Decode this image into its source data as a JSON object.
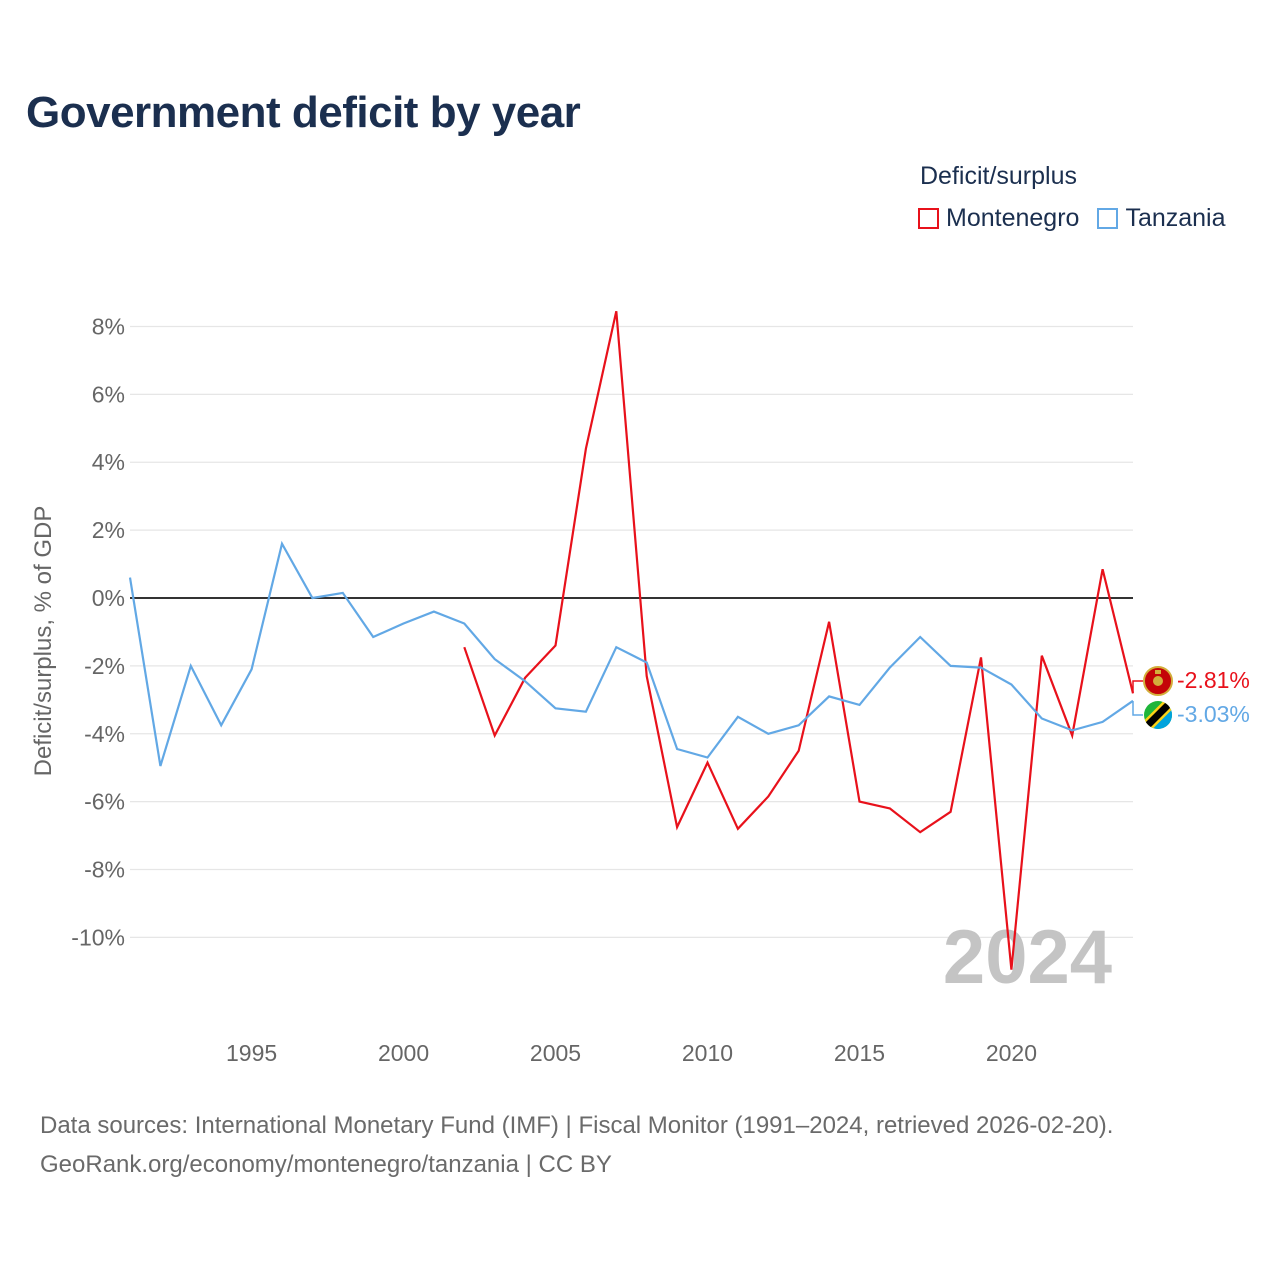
{
  "title": "Government deficit by year",
  "legend": {
    "title": "Deficit/surplus",
    "items": [
      {
        "name": "Montenegro",
        "color": "#e8111b"
      },
      {
        "name": "Tanzania",
        "color": "#62a8e5"
      }
    ]
  },
  "footer": {
    "line1": "Data sources: International Monetary Fund (IMF) | Fiscal Monitor (1991–2024, retrieved 2026-02-20).",
    "line2": "GeoRank.org/economy/montenegro/tanzania | CC BY"
  },
  "chart_data": {
    "type": "line",
    "title": "Government deficit by year",
    "xlabel": "",
    "ylabel": "Deficit/surplus, % of GDP",
    "xlim": [
      1991,
      2024
    ],
    "ylim": [
      -11,
      9
    ],
    "x_ticks": [
      1995,
      2000,
      2005,
      2010,
      2015,
      2020
    ],
    "y_ticks": [
      8,
      6,
      4,
      2,
      0,
      -2,
      -4,
      -6,
      -8,
      -10
    ],
    "y_tick_labels": [
      "8%",
      "6%",
      "4%",
      "2%",
      "0%",
      "-2%",
      "-4%",
      "-6%",
      "-8%",
      "-10%"
    ],
    "year_watermark": "2024",
    "series": [
      {
        "name": "Montenegro",
        "color": "#e8111b",
        "end_label": "-2.81%",
        "x": [
          2002,
          2003,
          2004,
          2005,
          2006,
          2007,
          2008,
          2009,
          2010,
          2011,
          2012,
          2013,
          2014,
          2015,
          2016,
          2017,
          2018,
          2019,
          2020,
          2021,
          2022,
          2023,
          2024
        ],
        "values": [
          -1.45,
          -4.05,
          -2.35,
          -1.4,
          4.4,
          8.45,
          -2.3,
          -6.75,
          -4.85,
          -6.8,
          -5.85,
          -4.5,
          -0.7,
          -6.0,
          -6.2,
          -6.9,
          -6.3,
          -1.75,
          -10.95,
          -1.7,
          -4.05,
          0.85,
          -2.81
        ]
      },
      {
        "name": "Tanzania",
        "color": "#62a8e5",
        "end_label": "-3.03%",
        "x": [
          1991,
          1992,
          1993,
          1994,
          1995,
          1996,
          1997,
          1998,
          1999,
          2000,
          2001,
          2002,
          2003,
          2004,
          2005,
          2006,
          2007,
          2008,
          2009,
          2010,
          2011,
          2012,
          2013,
          2014,
          2015,
          2016,
          2017,
          2018,
          2019,
          2020,
          2021,
          2022,
          2023,
          2024
        ],
        "values": [
          0.6,
          -4.95,
          -2.0,
          -3.75,
          -2.1,
          1.6,
          0.0,
          0.15,
          -1.15,
          -0.75,
          -0.4,
          -0.75,
          -1.8,
          -2.45,
          -3.25,
          -3.35,
          -1.45,
          -1.9,
          -4.45,
          -4.7,
          -3.5,
          -4.0,
          -3.75,
          -2.9,
          -3.15,
          -2.05,
          -1.15,
          -2.0,
          -2.05,
          -2.55,
          -3.55,
          -3.9,
          -3.65,
          -3.03
        ]
      }
    ]
  }
}
